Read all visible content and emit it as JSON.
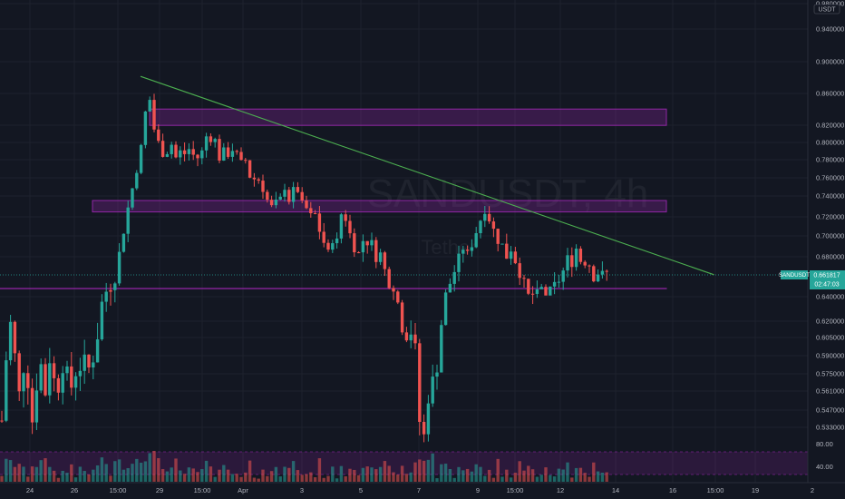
{
  "chart_data": {
    "type": "candlestick",
    "symbol": "SANDUSDT",
    "interval": "4h",
    "watermark_symbol": "SANDUSDT, 4h",
    "watermark_quote": "Tether",
    "quote_currency": "USDT",
    "price_axis_labels": [
      "0.980000",
      "0.940000",
      "0.900000",
      "0.860000",
      "0.820000",
      "0.800000",
      "0.780000",
      "0.760000",
      "0.740000",
      "0.720000",
      "0.700000",
      "0.680000",
      "0.640000",
      "0.620000",
      "0.605000",
      "0.590000",
      "0.575000",
      "0.561000",
      "0.547000",
      "0.533000"
    ],
    "time_axis_labels": [
      "24",
      "26",
      "15:00",
      "29",
      "15:00",
      "Apr",
      "3",
      "5",
      "7",
      "9",
      "15:00",
      "12",
      "14",
      "16",
      "15:00",
      "19",
      "2"
    ],
    "last_price": {
      "symbol_tag": "SANDUSDT",
      "value": "0.661817",
      "countdown": "02:47:03",
      "color": "#26a69a"
    },
    "zones": [
      {
        "from_price": 0.852,
        "to_price": 0.832,
        "color": "#9c27b0"
      },
      {
        "from_price": 0.74,
        "to_price": 0.726,
        "color": "#9c27b0"
      },
      {
        "from_price": 0.648,
        "to_price": 0.639,
        "color": "#9c27b0"
      }
    ],
    "trendline": {
      "start": {
        "date": "Mar 28",
        "price": 0.892
      },
      "end": {
        "date": "Apr 17",
        "price": 0.662
      },
      "color": "#4caf50"
    },
    "volume_pane": {
      "band_labels": [
        "80.00",
        "40.00"
      ],
      "band_color": "#9c27b0"
    },
    "colors": {
      "up": "#26a69a",
      "down": "#ef5350",
      "background": "#131722",
      "grid": "#1e222d"
    },
    "grid": true
  }
}
